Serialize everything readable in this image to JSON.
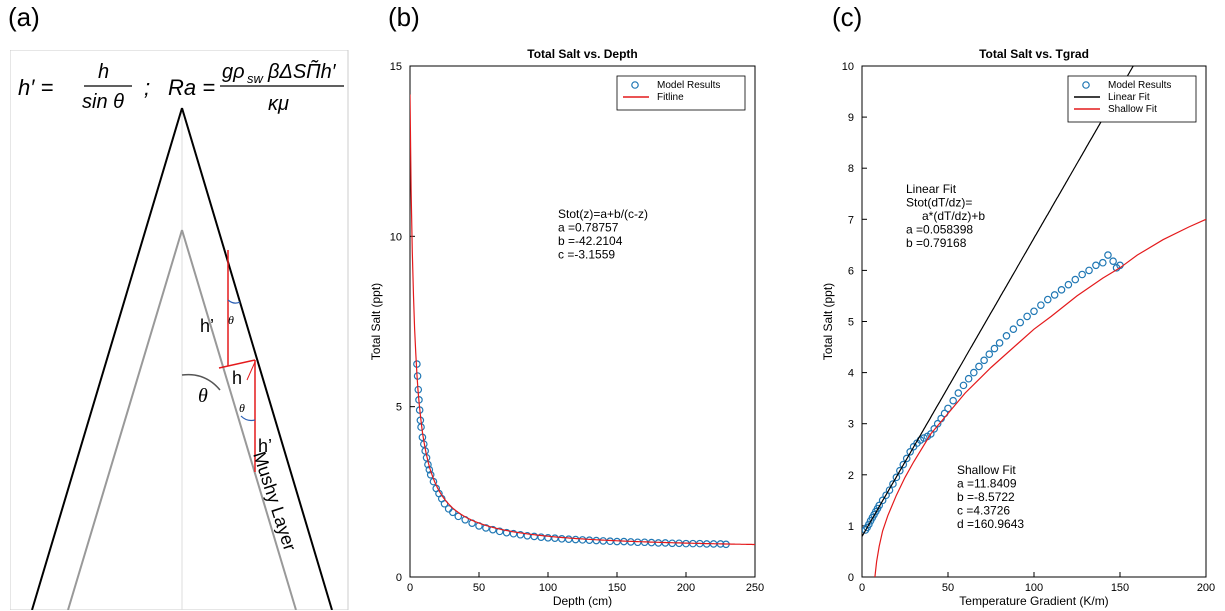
{
  "panels": {
    "a": {
      "label": "(a)",
      "formula_hprime": "h′ =",
      "formula_h": "h",
      "formula_sin": "sin θ",
      "formula_sep": ";",
      "formula_ra": "Ra =",
      "formula_num": "gρ",
      "formula_sub": "sw",
      "formula_num_rest": "βΔSΠ̃h′",
      "formula_den": "κμ",
      "lbl_hprime_top": "h’",
      "lbl_theta_small_top": "θ",
      "lbl_h": "h",
      "lbl_theta_big": "θ",
      "lbl_theta_small_bottom": "θ",
      "lbl_hprime_bottom": "h’",
      "lbl_mushy": "Mushy Layer"
    },
    "b": {
      "label": "(b)",
      "annotation": [
        "Stot(z)=a+b/(c-z)",
        "a =0.78757",
        "b =-42.2104",
        "c =-3.1559"
      ]
    },
    "c": {
      "label": "(c)",
      "annotation_linear": [
        "Linear Fit",
        "Stot(dT/dz)=",
        "a*(dT/dz)+b",
        "a =0.058398",
        "b =0.79168"
      ],
      "annotation_shallow": [
        "Shallow Fit",
        "a =11.8409",
        "b =-8.5722",
        "c =4.3726",
        "d =160.9643"
      ]
    }
  },
  "chart_data": [
    {
      "type": "scatter",
      "title": "Total Salt vs. Depth",
      "xlabel": "Depth (cm)",
      "ylabel": "Total Salt (ppt)",
      "xlim": [
        0,
        250
      ],
      "ylim": [
        0,
        15
      ],
      "xticks": [
        0,
        50,
        100,
        150,
        200,
        250
      ],
      "yticks": [
        0,
        5,
        10,
        15
      ],
      "legend_position": "top-right",
      "legend": [
        "Model Results",
        "Fitline"
      ],
      "series": [
        {
          "name": "Model Results",
          "kind": "points",
          "color": "#1f77b4",
          "x": [
            5,
            5.5,
            6,
            6.5,
            7,
            7.5,
            8,
            9,
            10,
            11,
            12,
            13,
            14,
            15,
            17,
            19,
            21,
            23,
            25,
            28,
            31,
            35,
            40,
            45,
            50,
            55,
            60,
            65,
            70,
            75,
            80,
            85,
            90,
            95,
            100,
            105,
            110,
            115,
            120,
            125,
            130,
            135,
            140,
            145,
            150,
            155,
            160,
            165,
            170,
            175,
            180,
            185,
            190,
            195,
            200,
            205,
            210,
            215,
            220,
            225,
            229
          ],
          "y": [
            6.25,
            5.9,
            5.5,
            5.2,
            4.9,
            4.6,
            4.4,
            4.1,
            3.9,
            3.7,
            3.5,
            3.3,
            3.15,
            3.0,
            2.8,
            2.6,
            2.45,
            2.3,
            2.15,
            2.0,
            1.9,
            1.78,
            1.68,
            1.58,
            1.5,
            1.44,
            1.39,
            1.34,
            1.3,
            1.27,
            1.24,
            1.21,
            1.19,
            1.17,
            1.15,
            1.14,
            1.12,
            1.11,
            1.1,
            1.09,
            1.08,
            1.07,
            1.06,
            1.05,
            1.04,
            1.04,
            1.03,
            1.02,
            1.02,
            1.01,
            1.0,
            1.0,
            0.99,
            0.99,
            0.98,
            0.98,
            0.98,
            0.97,
            0.97,
            0.97,
            0.96
          ]
        },
        {
          "name": "Fitline",
          "kind": "function",
          "color": "#e41a1c",
          "formula": "a+b/(c-z)",
          "params": {
            "a": 0.78757,
            "b": -42.2104,
            "c": -3.1559
          },
          "x_range": [
            0,
            250
          ]
        }
      ]
    },
    {
      "type": "scatter",
      "title": "Total Salt vs. Tgrad",
      "xlabel": "Temperature Gradient (K/m)",
      "ylabel": "Total Salt (ppt)",
      "xlim": [
        0,
        200
      ],
      "ylim": [
        0,
        10
      ],
      "xticks": [
        0,
        50,
        100,
        150,
        200
      ],
      "yticks": [
        0,
        1,
        2,
        3,
        4,
        5,
        6,
        7,
        8,
        9,
        10
      ],
      "legend_position": "top-right",
      "legend": [
        "Model Results",
        "Linear Fit",
        "Shallow Fit"
      ],
      "series": [
        {
          "name": "Model Results",
          "kind": "points",
          "color": "#1f77b4",
          "x": [
            2,
            3,
            4,
            5,
            6,
            7,
            8,
            9,
            10,
            12,
            14,
            16,
            18,
            20,
            22,
            24,
            26,
            28,
            30,
            32,
            34,
            36,
            38,
            40,
            42,
            44,
            46,
            48,
            50,
            53,
            56,
            59,
            62,
            65,
            68,
            71,
            74,
            77,
            80,
            84,
            88,
            92,
            96,
            100,
            104,
            108,
            112,
            116,
            120,
            124,
            128,
            132,
            136,
            140,
            143,
            146,
            148,
            150
          ],
          "y": [
            0.92,
            0.97,
            1.03,
            1.1,
            1.16,
            1.22,
            1.28,
            1.34,
            1.4,
            1.5,
            1.6,
            1.7,
            1.82,
            1.95,
            2.08,
            2.2,
            2.32,
            2.45,
            2.55,
            2.62,
            2.68,
            2.72,
            2.75,
            2.8,
            2.9,
            3.0,
            3.1,
            3.2,
            3.3,
            3.45,
            3.6,
            3.75,
            3.88,
            4.0,
            4.12,
            4.24,
            4.36,
            4.47,
            4.58,
            4.72,
            4.85,
            4.98,
            5.1,
            5.2,
            5.32,
            5.43,
            5.52,
            5.62,
            5.72,
            5.82,
            5.92,
            6.0,
            6.1,
            6.15,
            6.3,
            6.18,
            6.05,
            6.1
          ]
        },
        {
          "name": "Linear Fit",
          "kind": "function",
          "color": "#000000",
          "formula": "a*x+b",
          "params": {
            "a": 0.058398,
            "b": 0.79168
          },
          "x_range": [
            0,
            200
          ]
        },
        {
          "name": "Shallow Fit",
          "kind": "function",
          "color": "#e41a1c",
          "formula": "a*ln((x-c)/b) approx",
          "params": {
            "a": 11.8409,
            "b": -8.5722,
            "c": 4.3726,
            "d": 160.9643
          },
          "x_range": [
            0,
            200
          ],
          "points_x": [
            7.5,
            8.5,
            10,
            12,
            15,
            20,
            25,
            30,
            40,
            50,
            60,
            75,
            90,
            100,
            110,
            125,
            140,
            150,
            160,
            175,
            190,
            200
          ],
          "points_y": [
            0,
            0.3,
            0.6,
            0.9,
            1.2,
            1.6,
            1.95,
            2.25,
            2.8,
            3.2,
            3.6,
            4.1,
            4.55,
            4.85,
            5.1,
            5.5,
            5.85,
            6.05,
            6.3,
            6.6,
            6.85,
            7.0
          ]
        }
      ]
    }
  ]
}
